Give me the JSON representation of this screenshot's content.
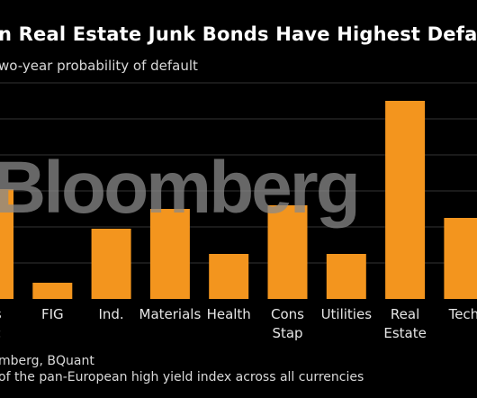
{
  "header": {
    "title": "n Real Estate Junk Bonds Have Highest Defau",
    "subtitle": "wo-year probability of default"
  },
  "footer": {
    "source": "mberg, BQuant",
    "note": "of the pan-European high yield index across all currencies"
  },
  "watermark": "Bloomberg",
  "colors": {
    "bar": "#f3951e",
    "grid": "#333333",
    "background": "#000000"
  },
  "chart_data": {
    "type": "bar",
    "title": "n Real Estate Junk Bonds Have Highest Defau",
    "subtitle": "wo-year probability of default",
    "categories": [
      {
        "label": [
          "ns",
          "sc"
        ]
      },
      {
        "label": [
          "FIG"
        ]
      },
      {
        "label": [
          "Ind."
        ]
      },
      {
        "label": [
          "Materials"
        ]
      },
      {
        "label": [
          "Health"
        ]
      },
      {
        "label": [
          "Cons",
          "Stap"
        ]
      },
      {
        "label": [
          "Utilities"
        ]
      },
      {
        "label": [
          "Real",
          "Estate"
        ]
      },
      {
        "label": [
          "Tech"
        ]
      }
    ],
    "values": [
      6.1,
      0.9,
      3.9,
      5.0,
      2.5,
      5.2,
      2.5,
      11.0,
      4.5
    ],
    "ylim": [
      0,
      12
    ],
    "grid": true,
    "legend": "none"
  }
}
